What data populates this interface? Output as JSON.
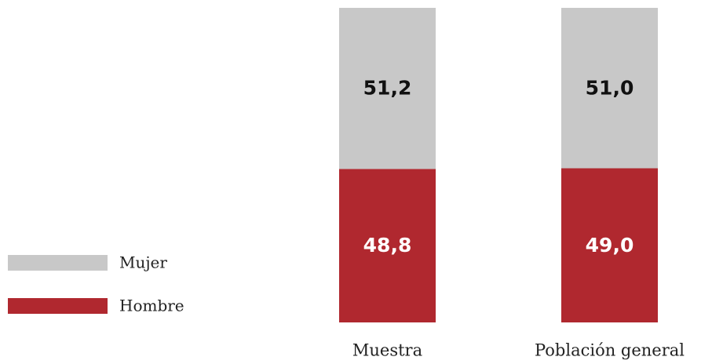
{
  "chart_data": {
    "type": "stacked_bar",
    "categories": [
      "Muestra",
      "Población general"
    ],
    "series": [
      {
        "name": "Hombre",
        "color": "#b0282f",
        "values": [
          48.8,
          49.0
        ],
        "value_labels": [
          "48,8",
          "49,0"
        ]
      },
      {
        "name": "Mujer",
        "color": "#c8c8c8",
        "values": [
          51.2,
          51.0
        ],
        "value_labels": [
          "51,2",
          "51,0"
        ]
      }
    ]
  }
}
